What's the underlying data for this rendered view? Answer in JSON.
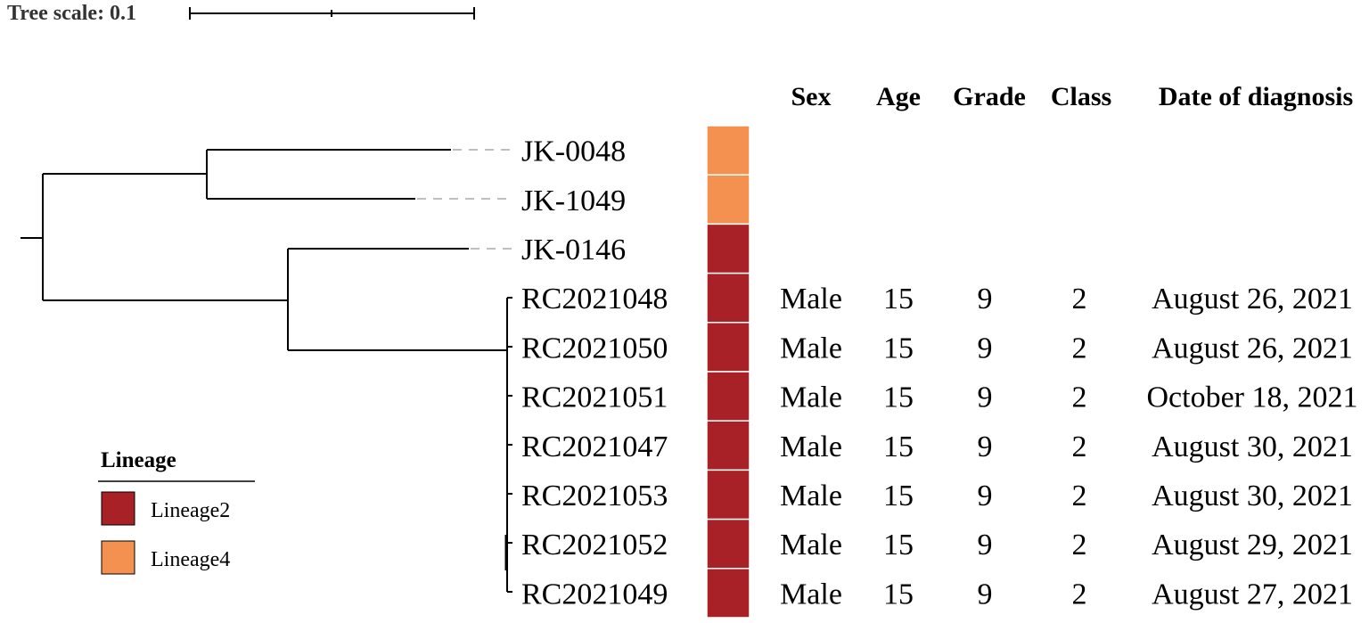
{
  "tree_scale": {
    "label": "Tree scale: 0.1"
  },
  "headers": {
    "sex": "Sex",
    "age": "Age",
    "grade": "Grade",
    "class": "Class",
    "date": "Date of diagnosis"
  },
  "leaves": [
    {
      "id": "JK-0048",
      "lineage": "Lineage4",
      "sex": "",
      "age": "",
      "grade": "",
      "class": "",
      "date": ""
    },
    {
      "id": "JK-1049",
      "lineage": "Lineage4",
      "sex": "",
      "age": "",
      "grade": "",
      "class": "",
      "date": ""
    },
    {
      "id": "JK-0146",
      "lineage": "Lineage2",
      "sex": "",
      "age": "",
      "grade": "",
      "class": "",
      "date": ""
    },
    {
      "id": "RC2021048",
      "lineage": "Lineage2",
      "sex": "Male",
      "age": "15",
      "grade": "9",
      "class": "2",
      "date": "August 26, 2021"
    },
    {
      "id": "RC2021050",
      "lineage": "Lineage2",
      "sex": "Male",
      "age": "15",
      "grade": "9",
      "class": "2",
      "date": "August 26, 2021"
    },
    {
      "id": "RC2021051",
      "lineage": "Lineage2",
      "sex": "Male",
      "age": "15",
      "grade": "9",
      "class": "2",
      "date": "October 18, 2021"
    },
    {
      "id": "RC2021047",
      "lineage": "Lineage2",
      "sex": "Male",
      "age": "15",
      "grade": "9",
      "class": "2",
      "date": "August 30, 2021"
    },
    {
      "id": "RC2021053",
      "lineage": "Lineage2",
      "sex": "Male",
      "age": "15",
      "grade": "9",
      "class": "2",
      "date": "August 30, 2021"
    },
    {
      "id": "RC2021052",
      "lineage": "Lineage2",
      "sex": "Male",
      "age": "15",
      "grade": "9",
      "class": "2",
      "date": "August 29, 2021"
    },
    {
      "id": "RC2021049",
      "lineage": "Lineage2",
      "sex": "Male",
      "age": "15",
      "grade": "9",
      "class": "2",
      "date": "August 27, 2021"
    }
  ],
  "legend": {
    "title": "Lineage",
    "items": [
      {
        "label": "Lineage2",
        "color": "#a72126"
      },
      {
        "label": "Lineage4",
        "color": "#f49150"
      }
    ]
  }
}
